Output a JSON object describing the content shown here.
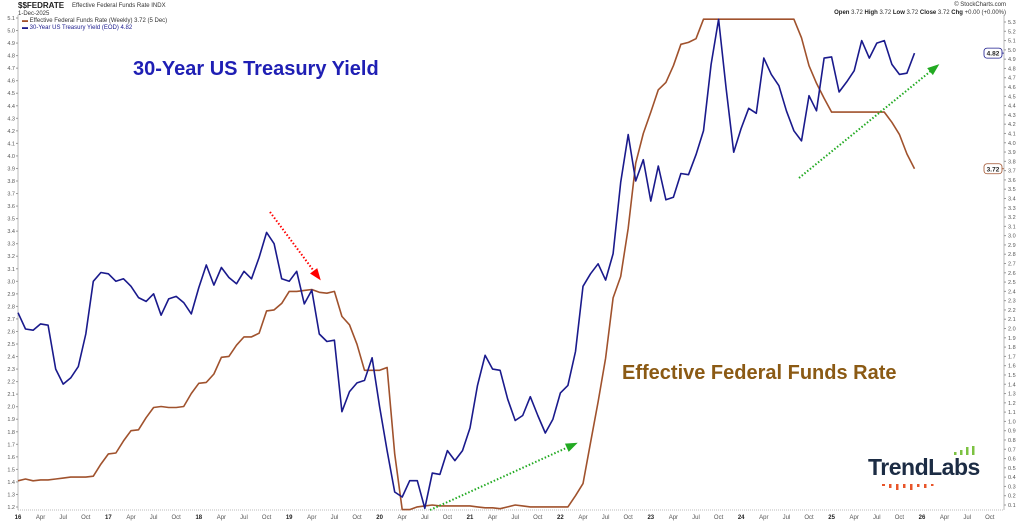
{
  "header": {
    "symbol": "$$FEDRATE",
    "name": "Effective Federal Funds Rate INDX",
    "date": "1-Dec-2025",
    "legend_fed": "Effective Federal Funds Rate (Weekly) 3.72 (5 Dec)",
    "legend_tsy": "30-Year US Treasury Yield (EOD) 4.82",
    "copyright": "© StockCharts.com",
    "open_label": "Open",
    "open": "3.72",
    "high_label": "High",
    "high": "3.72",
    "low_label": "Low",
    "low": "3.72",
    "close_label": "Close",
    "close": "3.72",
    "chg_label": "Chg",
    "chg": "+0.00 (+0.00%)"
  },
  "annotations": {
    "tsy_title": "30-Year US Treasury Yield",
    "fed_title": "Effective Federal Funds Rate"
  },
  "logo": {
    "text": "TrendLabs"
  },
  "colors": {
    "treasury": "#1a1a8c",
    "fed": "#a0522d",
    "tsy_label": "#1f1fb4",
    "fed_label": "#8b5a14",
    "arrow_down": "#ff0000",
    "arrow_up": "#22aa22",
    "logo_green": "#7cc242",
    "logo_orange": "#e8552a"
  },
  "chart_data": {
    "type": "line",
    "x_ticks": [
      "16",
      "Apr",
      "Jul",
      "Oct",
      "17",
      "Apr",
      "Jul",
      "Oct",
      "18",
      "Apr",
      "Jul",
      "Oct",
      "19",
      "Apr",
      "Jul",
      "Oct",
      "20",
      "Apr",
      "Jul",
      "Oct",
      "21",
      "Apr",
      "Jul",
      "Oct",
      "22",
      "Apr",
      "Jul",
      "Oct",
      "23",
      "Apr",
      "Jul",
      "Oct",
      "24",
      "Apr",
      "Jul",
      "Oct",
      "25",
      "Apr",
      "Jul",
      "Oct",
      "26",
      "Apr",
      "Jul",
      "Oct"
    ],
    "x_range": [
      "2016-01",
      "2026-12"
    ],
    "left_axis": {
      "ylim": [
        1.2,
        5.1
      ],
      "ticks": [
        "5.1",
        "5.0",
        "4.9",
        "4.8",
        "4.7",
        "4.6",
        "4.5",
        "4.4",
        "4.3",
        "4.2",
        "4.1",
        "4.0",
        "3.9",
        "3.8",
        "3.7",
        "3.6",
        "3.5",
        "3.4",
        "3.3",
        "3.2",
        "3.1",
        "3.0",
        "2.9",
        "2.8",
        "2.7",
        "2.6",
        "2.5",
        "2.4",
        "2.3",
        "2.2",
        "2.1",
        "2.0",
        "1.9",
        "1.8",
        "1.7",
        "1.6",
        "1.5",
        "1.4",
        "1.3",
        "1.2"
      ]
    },
    "right_axis": {
      "ylim": [
        0.1,
        5.3
      ],
      "ticks": [
        "5.3",
        "5.2",
        "5.1",
        "5.0",
        "4.9",
        "4.8",
        "4.7",
        "4.6",
        "4.5",
        "4.4",
        "4.3",
        "4.2",
        "4.1",
        "4.0",
        "3.9",
        "3.8",
        "3.7",
        "3.6",
        "3.5",
        "3.4",
        "3.3",
        "3.2",
        "3.1",
        "3.0",
        "2.9",
        "2.8",
        "2.7",
        "2.6",
        "2.5",
        "2.4",
        "2.3",
        "2.2",
        "2.1",
        "2.0",
        "1.9",
        "1.8",
        "1.7",
        "1.6",
        "1.5",
        "1.4",
        "1.3",
        "1.2",
        "1.1",
        "1.0",
        "0.9",
        "0.8",
        "0.7",
        "0.6",
        "0.5",
        "0.4",
        "0.3",
        "0.2",
        "0.1"
      ]
    },
    "series": [
      {
        "name": "30-Year US Treasury Yield (EOD)",
        "axis": "left",
        "last": "4.82",
        "frequency": "monthly",
        "values_by_year": {
          "2016": [
            2.75,
            2.62,
            2.61,
            2.66,
            2.65,
            2.3,
            2.18,
            2.23,
            2.32,
            2.58,
            3.0,
            3.07
          ],
          "2017": [
            3.06,
            3.0,
            3.02,
            2.96,
            2.87,
            2.84,
            2.9,
            2.73,
            2.86,
            2.88,
            2.83,
            2.74
          ],
          "2018": [
            2.95,
            3.13,
            2.97,
            3.11,
            3.03,
            2.98,
            3.08,
            3.02,
            3.19,
            3.39,
            3.3,
            3.02
          ],
          "2019": [
            3.0,
            3.08,
            2.82,
            2.93,
            2.58,
            2.52,
            2.53,
            1.96,
            2.12,
            2.19,
            2.21,
            2.39
          ],
          "2020": [
            2.0,
            1.65,
            1.32,
            1.28,
            1.41,
            1.41,
            1.19,
            1.47,
            1.46,
            1.65,
            1.57,
            1.65
          ],
          "2021": [
            1.83,
            2.17,
            2.41,
            2.3,
            2.29,
            2.06,
            1.89,
            1.93,
            2.08,
            1.93,
            1.79,
            1.9
          ],
          "2022": [
            2.11,
            2.17,
            2.44,
            2.96,
            3.06,
            3.14,
            3.01,
            3.22,
            3.79,
            4.17,
            3.8,
            3.97
          ],
          "2023": [
            3.64,
            3.92,
            3.65,
            3.67,
            3.86,
            3.85,
            4.01,
            4.2,
            4.73,
            5.09,
            4.54,
            4.03
          ],
          "2024": [
            4.22,
            4.38,
            4.34,
            4.78,
            4.65,
            4.56,
            4.36,
            4.2,
            4.12,
            4.48,
            4.36,
            4.78
          ],
          "2025": [
            4.79,
            4.51,
            4.59,
            4.68,
            4.92,
            4.78,
            4.9,
            4.92,
            4.73,
            4.65,
            4.66,
            4.82
          ]
        }
      },
      {
        "name": "Effective Federal Funds Rate (Weekly)",
        "axis": "right",
        "last": "3.72",
        "frequency": "monthly",
        "values_by_year": {
          "2016": [
            0.36,
            0.38,
            0.36,
            0.37,
            0.37,
            0.38,
            0.39,
            0.4,
            0.4,
            0.4,
            0.41,
            0.54
          ],
          "2017": [
            0.65,
            0.66,
            0.79,
            0.9,
            0.91,
            1.04,
            1.15,
            1.16,
            1.15,
            1.15,
            1.16,
            1.3
          ],
          "2018": [
            1.41,
            1.42,
            1.51,
            1.69,
            1.7,
            1.82,
            1.91,
            1.91,
            1.95,
            2.19,
            2.2,
            2.27
          ],
          "2019": [
            2.4,
            2.4,
            2.41,
            2.42,
            2.39,
            2.38,
            2.4,
            2.13,
            2.04,
            1.83,
            1.55,
            1.55
          ],
          "2020": [
            1.55,
            1.58,
            0.65,
            0.05,
            0.05,
            0.08,
            0.09,
            0.1,
            0.09,
            0.09,
            0.09,
            0.09
          ],
          "2021": [
            0.09,
            0.08,
            0.07,
            0.07,
            0.06,
            0.08,
            0.1,
            0.09,
            0.08,
            0.08,
            0.08,
            0.08
          ],
          "2022": [
            0.08,
            0.08,
            0.2,
            0.33,
            0.77,
            1.21,
            1.68,
            2.33,
            2.56,
            3.08,
            3.78,
            4.1
          ],
          "2023": [
            4.33,
            4.57,
            4.65,
            4.83,
            5.06,
            5.08,
            5.12,
            5.33,
            5.33,
            5.33,
            5.33,
            5.33
          ],
          "2024": [
            5.33,
            5.33,
            5.33,
            5.33,
            5.33,
            5.33,
            5.33,
            5.33,
            5.13,
            4.83,
            4.64,
            4.48
          ],
          "2025": [
            4.33,
            4.33,
            4.33,
            4.33,
            4.33,
            4.33,
            4.33,
            4.33,
            4.22,
            4.09,
            3.88,
            3.72
          ]
        }
      }
    ],
    "grid": false
  }
}
